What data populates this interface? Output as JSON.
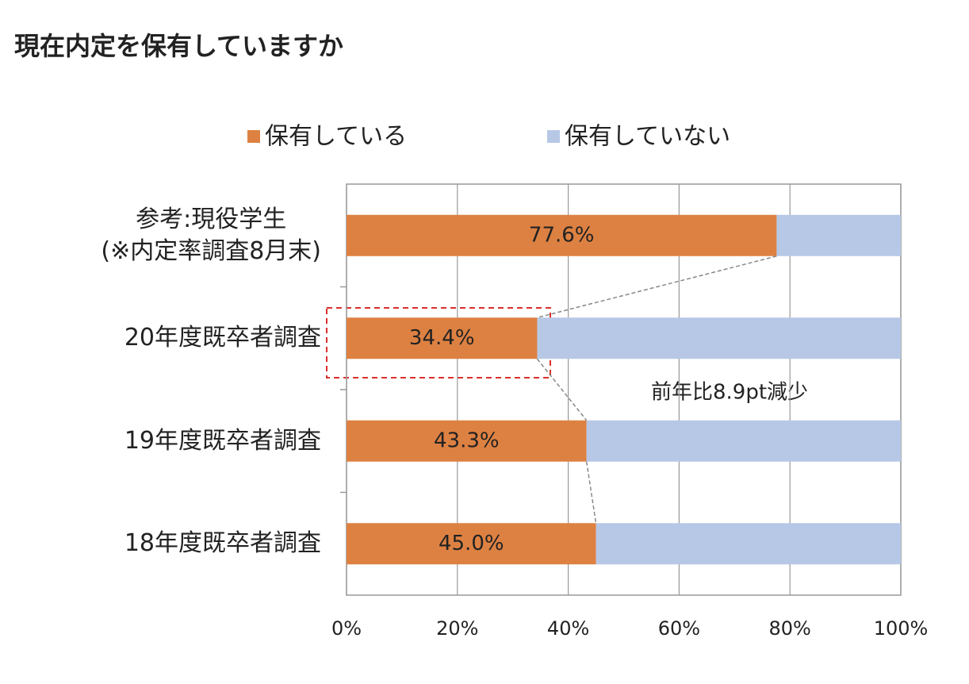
{
  "chart_data": {
    "type": "stacked-bar-horizontal",
    "title": "現在内定を保有していますか",
    "categories": [
      "参考:現役学生\n(※内定率調査8月末)",
      "20年度既卒者調査",
      "19年度既卒者調査",
      "18年度既卒者調査"
    ],
    "series": [
      {
        "name": "保有している",
        "color": "#dd8142",
        "values": [
          77.6,
          34.4,
          43.3,
          45.0
        ],
        "value_labels": [
          "77.6%",
          "34.4%",
          "43.3%",
          "45.0%"
        ]
      },
      {
        "name": "保有していない",
        "color": "#b7c8e6",
        "values": [
          22.4,
          65.6,
          56.7,
          55.0
        ]
      }
    ],
    "xlim": [
      0,
      100
    ],
    "xticks": [
      {
        "value": 0,
        "label": "0%"
      },
      {
        "value": 20,
        "label": "20%"
      },
      {
        "value": 40,
        "label": "40%"
      },
      {
        "value": 60,
        "label": "60%"
      },
      {
        "value": 80,
        "label": "80%"
      },
      {
        "value": 100,
        "label": "100%"
      }
    ],
    "grid": true,
    "legend": "top",
    "annotation": "前年比8.9pt減少"
  }
}
